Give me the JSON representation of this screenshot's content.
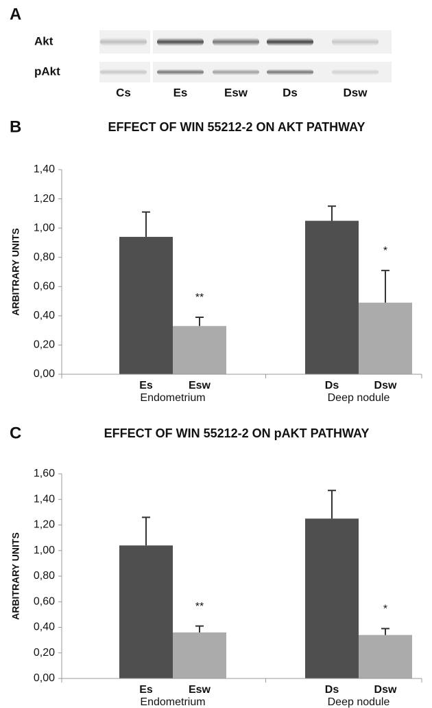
{
  "blot": {
    "panel": "A",
    "proteins": [
      "Akt",
      "pAkt"
    ],
    "lanes": [
      "Cs",
      "Es",
      "Esw",
      "Ds",
      "Dsw"
    ]
  },
  "chart_data": [
    {
      "type": "bar",
      "panel": "B",
      "title": "EFFECT OF WIN 55212-2 ON AKT PATHWAY",
      "ylabel": "ARBITRARY UNITS",
      "categories": [
        "Es",
        "Esw",
        "Ds",
        "Dsw"
      ],
      "groups": [
        "Endometrium",
        "Deep nodule"
      ],
      "values": [
        0.94,
        0.33,
        1.05,
        0.49
      ],
      "errors": [
        0.17,
        0.06,
        0.1,
        0.22
      ],
      "colors": [
        "#4f4f4f",
        "#ababab",
        "#4f4f4f",
        "#ababab"
      ],
      "annotations": [
        null,
        "**",
        null,
        "*"
      ],
      "ylim": [
        0,
        1.4
      ],
      "yticks": [
        {
          "value": 0,
          "label": "0,00"
        },
        {
          "value": 0.2,
          "label": "0,20"
        },
        {
          "value": 0.4,
          "label": "0,40"
        },
        {
          "value": 0.6,
          "label": "0,60"
        },
        {
          "value": 0.8,
          "label": "0,80"
        },
        {
          "value": 1.0,
          "label": "1,00"
        },
        {
          "value": 1.2,
          "label": "1,20"
        },
        {
          "value": 1.4,
          "label": "1,40"
        }
      ],
      "grid": false
    },
    {
      "type": "bar",
      "panel": "C",
      "title": "EFFECT OF WIN 55212-2 ON pAKT PATHWAY",
      "ylabel": "ARBITRARY UNITS",
      "categories": [
        "Es",
        "Esw",
        "Ds",
        "Dsw"
      ],
      "groups": [
        "Endometrium",
        "Deep nodule"
      ],
      "values": [
        1.04,
        0.36,
        1.25,
        0.34
      ],
      "errors": [
        0.22,
        0.05,
        0.22,
        0.05
      ],
      "colors": [
        "#4f4f4f",
        "#ababab",
        "#4f4f4f",
        "#ababab"
      ],
      "annotations": [
        null,
        "**",
        null,
        "*"
      ],
      "ylim": [
        0,
        1.6
      ],
      "yticks": [
        {
          "value": 0,
          "label": "0,00"
        },
        {
          "value": 0.2,
          "label": "0,20"
        },
        {
          "value": 0.4,
          "label": "0,40"
        },
        {
          "value": 0.6,
          "label": "0,60"
        },
        {
          "value": 0.8,
          "label": "0,80"
        },
        {
          "value": 1.0,
          "label": "1,00"
        },
        {
          "value": 1.2,
          "label": "1,20"
        },
        {
          "value": 1.4,
          "label": "1,40"
        },
        {
          "value": 1.6,
          "label": "1,60"
        }
      ],
      "grid": false
    }
  ]
}
